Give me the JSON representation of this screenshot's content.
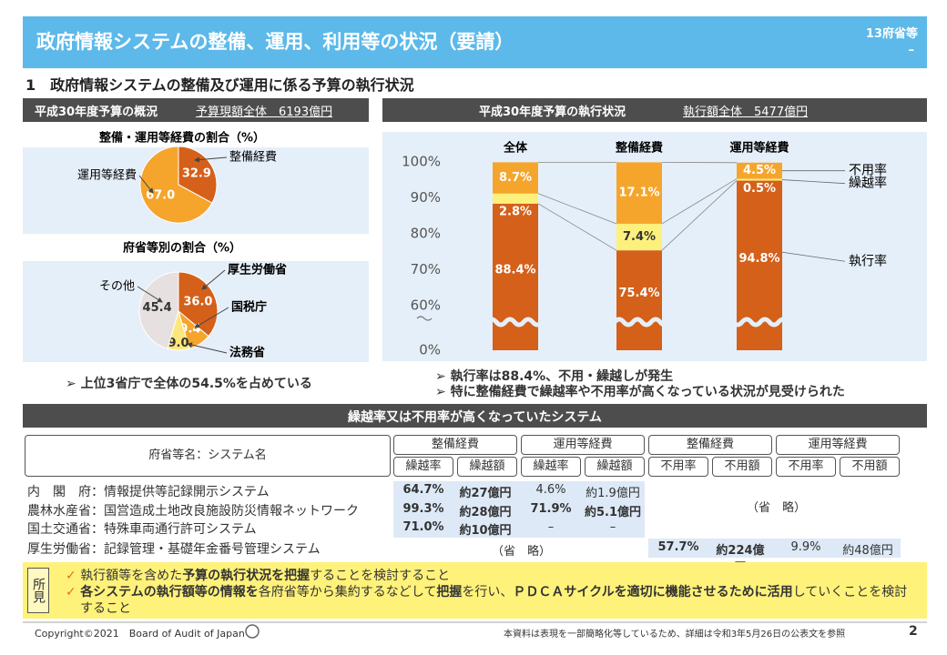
{
  "header": {
    "title": "政府情報システムの整備、運用、利用等の状況（要請）",
    "tag": "13府省等",
    "tag_mark": "–"
  },
  "section_title": "1　政府情報システムの整備及び運用に係る予算の執行状況",
  "left_panel": {
    "title": "平成30年度予算の概況",
    "total": "予算現額全体　6193億円",
    "note": "上位3省庁で全体の54.5%を占めている"
  },
  "right_panel": {
    "title": "平成30年度予算の執行状況",
    "total": "執行額全体　5477億円",
    "notes": [
      "執行率は88.4%、不用・繰越しが発生",
      "特に整備経費で繰越率や不用率が高くなっている状況が見受けられた"
    ]
  },
  "chart_data": [
    {
      "type": "pie",
      "title": "整備・運用等経費の割合（%）",
      "categories": [
        "整備経費",
        "運用等経費"
      ],
      "values": [
        32.9,
        67.0
      ],
      "value_labels": [
        "32.9",
        "67.0"
      ],
      "colors": [
        "#d4601a",
        "#f5a52c"
      ]
    },
    {
      "type": "pie",
      "title": "府省等別の割合（%）",
      "categories": [
        "厚生労働省",
        "国税庁",
        "法務省",
        "その他"
      ],
      "values": [
        36.0,
        9.4,
        9.0,
        45.4
      ],
      "value_labels": [
        "36.0",
        "9.4",
        "9.0",
        "45.4"
      ],
      "colors": [
        "#d4601a",
        "#f5a52c",
        "#fde77c",
        "#e6e0e0"
      ]
    },
    {
      "type": "stacked_bar",
      "categories": [
        "全体",
        "整備経費",
        "運用等経費"
      ],
      "series": [
        {
          "name": "執行率",
          "color": "#d4601a",
          "values": [
            88.4,
            75.4,
            94.8
          ],
          "value_labels": [
            "88.4%",
            "75.4%",
            "94.8%"
          ]
        },
        {
          "name": "繰越率",
          "color": "#fdf07c",
          "values": [
            2.8,
            7.4,
            0.5
          ],
          "value_labels": [
            "2.8%",
            "7.4%",
            "0.5%"
          ]
        },
        {
          "name": "不用率",
          "color": "#f5a52c",
          "values": [
            8.7,
            17.1,
            4.5
          ],
          "value_labels": [
            "8.7%",
            "17.1%",
            "4.5%"
          ]
        }
      ],
      "ylim": [
        0,
        100
      ],
      "yticks": [
        {
          "value": 0,
          "label": "0%"
        },
        {
          "value": 60,
          "label": "60%"
        },
        {
          "value": 70,
          "label": "70%"
        },
        {
          "value": 80,
          "label": "80%"
        },
        {
          "value": 90,
          "label": "90%"
        },
        {
          "value": 100,
          "label": "100%"
        }
      ],
      "axis_break": true
    }
  ],
  "table": {
    "title": "繰越率又は不用率が高くなっていたシステム",
    "name_header": "府省等名：システム名",
    "groups": [
      "整備経費",
      "運用等経費",
      "整備経費",
      "運用等経費"
    ],
    "subheaders": [
      "繰越率",
      "繰越額",
      "繰越率",
      "繰越額",
      "不用率",
      "不用額",
      "不用率",
      "不用額"
    ],
    "rows": [
      {
        "name": "内　閣　府：情報提供等記録開示システム",
        "carryover": [
          {
            "t": "64.7%",
            "b": true
          },
          {
            "t": "約27億円",
            "b": true
          },
          {
            "t": "4.6%",
            "b": false
          },
          {
            "t": "約1.9億円",
            "b": false
          }
        ]
      },
      {
        "name": "農林水産省：国営造成土地改良施設防災情報ネットワーク",
        "carryover": [
          {
            "t": "99.3%",
            "b": true
          },
          {
            "t": "約28億円",
            "b": true
          },
          {
            "t": "71.9%",
            "b": true
          },
          {
            "t": "約5.1億円",
            "b": true
          }
        ]
      },
      {
        "name": "国土交通省：特殊車両通行許可システム",
        "carryover": [
          {
            "t": "71.0%",
            "b": true
          },
          {
            "t": "約10億円",
            "b": true
          },
          {
            "t": "–",
            "b": false
          },
          {
            "t": "–",
            "b": false
          }
        ]
      },
      {
        "name": "厚生労働省：記録管理・基礎年金番号管理システム",
        "unused": [
          {
            "t": "57.7%",
            "b": true
          },
          {
            "t": "約224億円",
            "b": true
          },
          {
            "t": "9.9%",
            "b": false
          },
          {
            "t": "約48億円",
            "b": false
          }
        ]
      }
    ],
    "omitted": [
      "（省　略）",
      "（省　略）"
    ]
  },
  "findings": {
    "label": "所見",
    "items": [
      [
        {
          "t": "執行額等を含めた",
          "b": false
        },
        {
          "t": "予算の執行状況を把握",
          "b": true
        },
        {
          "t": "することを検討すること",
          "b": false
        }
      ],
      [
        {
          "t": "各システムの執行額等の情報を",
          "b": true
        },
        {
          "t": "各府省等から集約するなどして",
          "b": false
        },
        {
          "t": "把握",
          "b": true
        },
        {
          "t": "を行い、",
          "b": false
        },
        {
          "t": "ＰＤＣＡサイクルを適切に機能させるために活用",
          "b": true
        },
        {
          "t": "していくことを検討すること",
          "b": false
        }
      ]
    ]
  },
  "footer": {
    "copyright": "Copyright©2021　Board of Audit of Japan",
    "note": "本資料は表現を一部簡略化等しているため、詳細は令和3年5月26日の公表文を参照",
    "page": "2"
  }
}
